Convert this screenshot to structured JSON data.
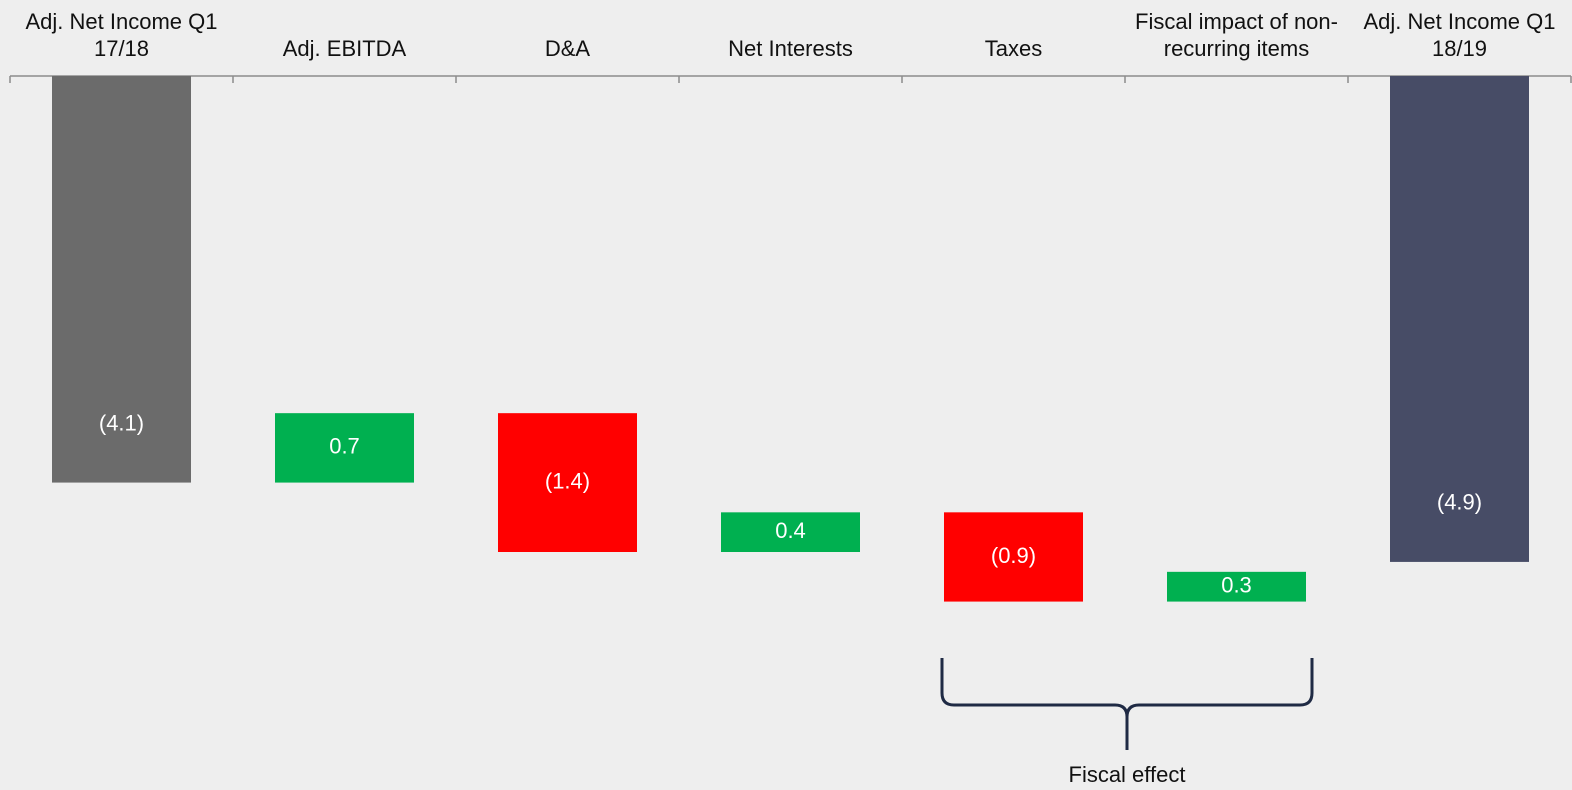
{
  "chart_data": {
    "type": "waterfall",
    "categories": [
      "Adj. Net Income Q1 17/18",
      "Adj. EBITDA",
      "D&A",
      "Net Interests",
      "Taxes",
      "Fiscal impact of non-recurring items",
      "Adj. Net Income Q1 18/19"
    ],
    "values": [
      -4.1,
      0.7,
      -1.4,
      0.4,
      -0.9,
      0.3,
      -4.9
    ],
    "value_labels": [
      "(4.1)",
      "0.7",
      "(1.4)",
      "0.4",
      "(0.9)",
      "0.3",
      "(4.9)"
    ],
    "measure": [
      "absolute",
      "relative",
      "relative",
      "relative",
      "relative",
      "relative",
      "absolute"
    ],
    "colors": [
      "#6b6b6b",
      "#00b050",
      "#ff0000",
      "#00b050",
      "#ff0000",
      "#00b050",
      "#474c66"
    ],
    "ylim": [
      -7.2,
      0
    ],
    "annotations": [
      {
        "text": "Fiscal effect",
        "from": "Taxes",
        "to": "Fiscal impact of non-recurring items"
      }
    ]
  }
}
